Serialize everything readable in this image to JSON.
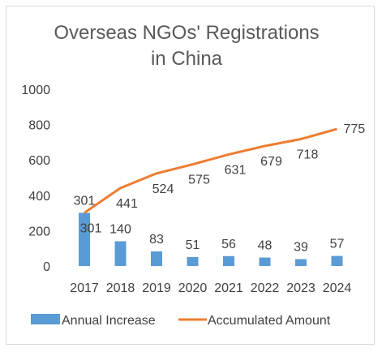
{
  "chart_data": {
    "type": "bar",
    "title_lines": [
      "Overseas NGOs' Registrations",
      "in China"
    ],
    "categories": [
      "2017",
      "2018",
      "2019",
      "2020",
      "2021",
      "2022",
      "2023",
      "2024"
    ],
    "series": [
      {
        "name": "Annual Increase",
        "type": "bar",
        "color": "#5b9bd5",
        "values": [
          301,
          140,
          83,
          51,
          56,
          48,
          39,
          57
        ]
      },
      {
        "name": "Accumulated Amount",
        "type": "line",
        "color": "#ed7d31",
        "values": [
          301,
          441,
          524,
          575,
          631,
          679,
          718,
          775
        ]
      }
    ],
    "ylim": [
      0,
      1000
    ],
    "yticks": [
      0,
      200,
      400,
      600,
      800,
      1000
    ],
    "grid": false,
    "legend_position": "bottom"
  }
}
